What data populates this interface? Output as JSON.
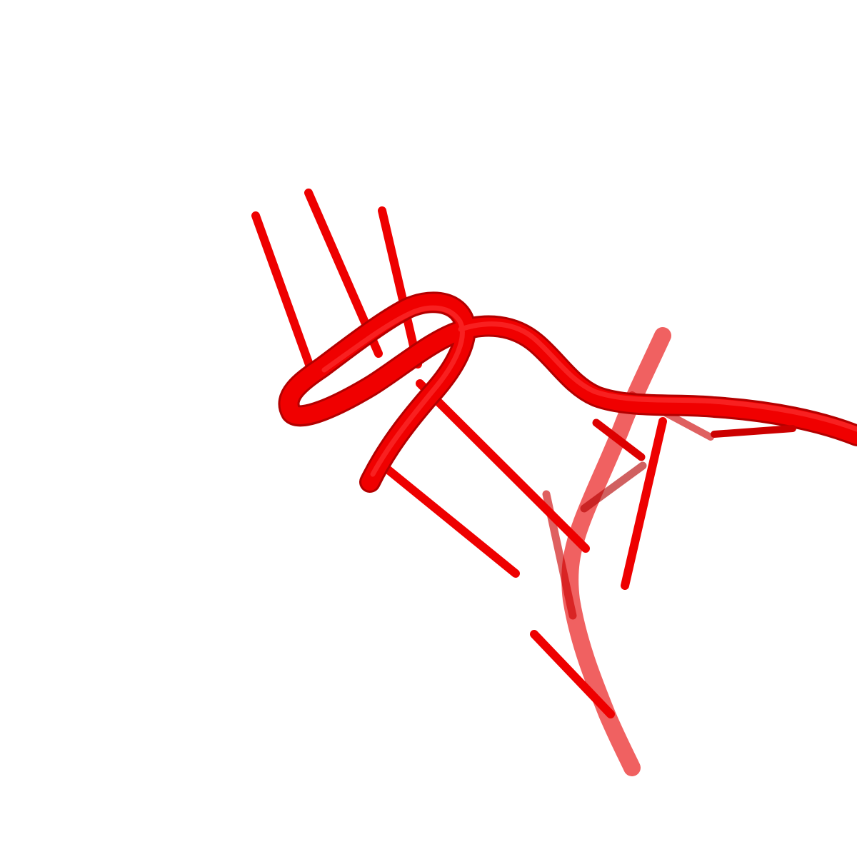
{
  "scene": {
    "background": "#ffffff",
    "molecule_color": "#ff0000",
    "shadow_color": "#b40000",
    "highlight_color": "#ff4a4a",
    "representation": "cartoon-nucleic-acid"
  }
}
